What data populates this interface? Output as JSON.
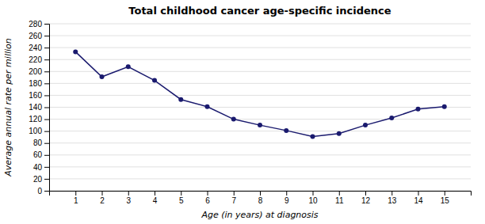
{
  "chart_data": {
    "type": "line",
    "title": "Total childhood cancer age-specific incidence",
    "xlabel": "Age (in years) at diagnosis",
    "ylabel": "Average annual rate per million",
    "x": [
      1,
      2,
      3,
      4,
      5,
      6,
      7,
      8,
      9,
      10,
      11,
      12,
      13,
      14,
      15
    ],
    "values": [
      233,
      191,
      208,
      185,
      153,
      141,
      120,
      110,
      101,
      91,
      96,
      110,
      122,
      137,
      141
    ],
    "xlim": [
      0,
      16
    ],
    "xticks": [
      1,
      2,
      3,
      4,
      5,
      6,
      7,
      8,
      9,
      10,
      11,
      12,
      13,
      14,
      15
    ],
    "ylim": [
      0,
      280
    ],
    "yticks": [
      0,
      20,
      40,
      60,
      80,
      100,
      120,
      140,
      160,
      180,
      200,
      220,
      240,
      260,
      280
    ],
    "color": "#1a1a6e",
    "marker": "circle",
    "grid": true
  }
}
